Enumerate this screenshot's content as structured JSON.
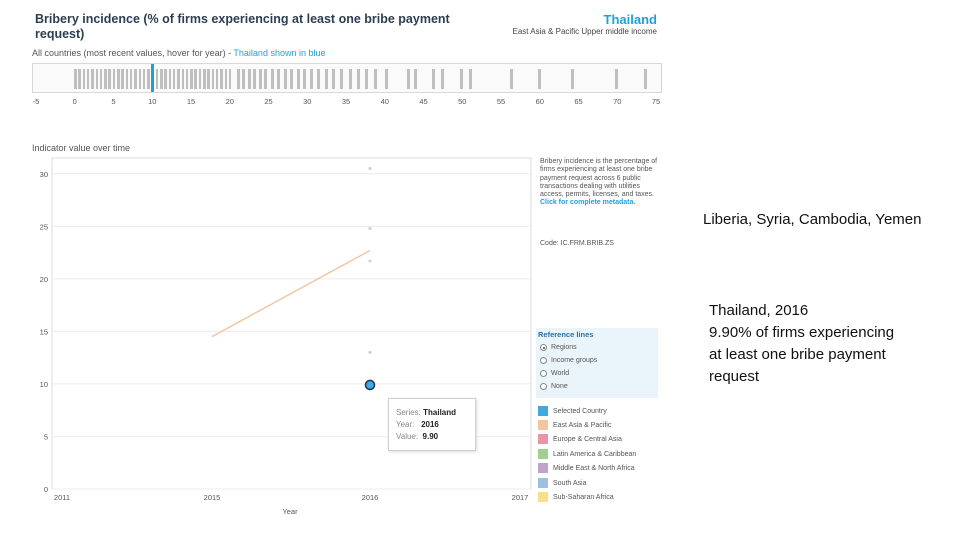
{
  "header": {
    "title": "Bribery incidence (% of firms experiencing at least one bribe payment request)",
    "country": "Thailand",
    "region": "East Asia & Pacific  Upper middle income",
    "subtitle_main": "All countries (most recent values, hover for year) - ",
    "subtitle_highlight": "Thailand shown in blue"
  },
  "strip": {
    "ticks": [
      "-5",
      "0",
      "5",
      "10",
      "15",
      "20",
      "25",
      "30",
      "35",
      "40",
      "45",
      "50",
      "55",
      "60",
      "65",
      "70",
      "75"
    ],
    "selected_value": 9.9
  },
  "chart_title": "Indicator value over time",
  "chart_data": {
    "type": "line",
    "xlabel": "Year",
    "ylabel": "",
    "x_ticks": [
      "2011",
      "2015",
      "2016",
      "2017"
    ],
    "y_ticks": [
      "0",
      "5",
      "10",
      "15",
      "20",
      "25",
      "30"
    ],
    "ylim": [
      0,
      31.5
    ],
    "reference_line": {
      "name": "East Asia & Pacific",
      "x": [
        2015,
        2016
      ],
      "y": [
        14.5,
        22.7
      ]
    },
    "other_points": {
      "x": 2016,
      "y": [
        30.5,
        24.8,
        21.7,
        13.0
      ]
    },
    "selected_point": {
      "x": 2016,
      "y": 9.9
    }
  },
  "side_info": {
    "description": "Bribery incidence is the percentage of firms experiencing at least one bribe payment request across 6 public transactions dealing with utilities access, permits, licenses, and taxes.",
    "metadata_link": "Click for complete metadata.",
    "code": "Code: IC.FRM.BRIB.ZS"
  },
  "reference_lines": {
    "title": "Reference lines",
    "options": [
      "Regions",
      "Income groups",
      "World",
      "None"
    ],
    "selected": "Regions"
  },
  "legend": [
    {
      "label": "Selected Country",
      "color": "#3fa9e0"
    },
    {
      "label": "East Asia & Pacific",
      "color": "#f2c4a0"
    },
    {
      "label": "Europe & Central Asia",
      "color": "#e895a8"
    },
    {
      "label": "Latin America & Caribbean",
      "color": "#9fd08f"
    },
    {
      "label": "Middle East & North Africa",
      "color": "#bfa3cc"
    },
    {
      "label": "South Asia",
      "color": "#9ebfe0"
    },
    {
      "label": "Sub-Saharan Africa",
      "color": "#f7e08c"
    }
  ],
  "tooltip": {
    "series_label": "Series:",
    "series_value": "Thailand",
    "year_label": "Year:",
    "year_value": "2016",
    "value_label": "Value:",
    "value_value": "9.90"
  },
  "notes": {
    "countries": "Liberia, Syria, Cambodia, Yemen",
    "line1": "Thailand, 2016",
    "line2": "9.90% of firms experiencing",
    "line3": "at least one bribe payment",
    "line4": "request"
  }
}
